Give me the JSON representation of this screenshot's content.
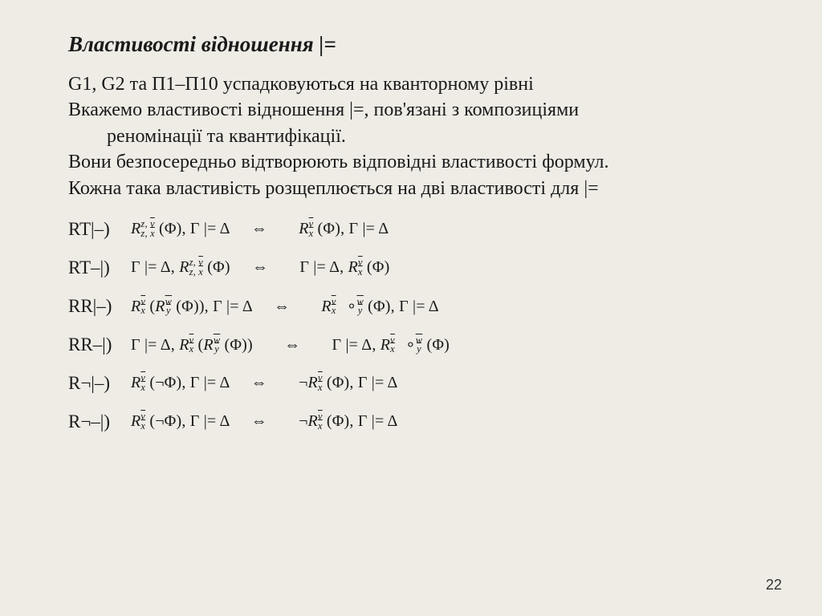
{
  "title": "Властивості відношення |=",
  "p1": "G1, G2 та П1–П10  успадковуються на кванторному рівні",
  "p2a": "Вкажемо властивості відношення |=, пов'язані з композиціями",
  "p2b": "реномінації та квантифікації.",
  "p3": "Вони безпосередньо відтворюють відповідні властивості формул.",
  "p4": "Кожна така властивість розщеплюється на дві властивості для |=",
  "labels": {
    "l1": "RT|–)",
    "l2": "RT–|)",
    "l3": "RR|–)",
    "l4": "RR–|)",
    "l5": "R¬|–)",
    "l6": "R¬–|)"
  },
  "glyph": {
    "R": "R",
    "Phi": "Φ",
    "Gamma": "Γ",
    "Delta": "Δ",
    "models": "|=",
    "iff": "⇔",
    "not": "¬",
    "comp": "∘",
    "z": "z",
    "zbar": "z",
    "xbar": "x",
    "vbar": "v",
    "ybar": "y",
    "wbar": "w"
  },
  "frag": {
    "phiGmD": "(Φ), Γ |= Δ",
    "GmD": "Γ |= Δ,",
    "phi": "(Φ)",
    "phi2": "(Φ))",
    "notPhiGmD": "(¬Φ), Γ |= Δ",
    "phiGmD2": "(Φ)), Γ |= Δ"
  },
  "pagenum": "22"
}
